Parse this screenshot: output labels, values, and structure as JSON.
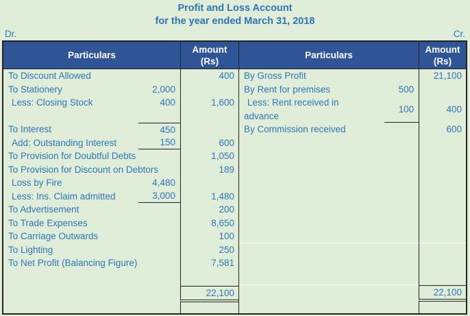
{
  "title": {
    "line1": "Profit and Loss Account",
    "line2": "for the year ended March 31, 2018"
  },
  "corner": {
    "left": "Dr.",
    "right": "Cr."
  },
  "header": {
    "particulars_left": "Particulars",
    "amount_left": "Amount\n(Rs)",
    "particulars_right": "Particulars",
    "amount_right": "Amount\n(Rs)"
  },
  "colors": {
    "page_bg": "#E0EDD8",
    "header_bg": "#2F5597",
    "header_text": "#FFFFFF",
    "title_blue": "#2E74B5",
    "text_blue": "#2E75B6",
    "border": "#222222"
  },
  "debit": {
    "rows": [
      {
        "label": "To Discount Allowed",
        "amount": "400"
      },
      {
        "label": "To Stationery",
        "inner": "2,000"
      },
      {
        "label": "Less: Closing Stock",
        "indent": true,
        "inner": "400",
        "amount": "1,600"
      },
      {
        "blank": true
      },
      {
        "label": "To Interest",
        "inner": "450",
        "inner_line": "top"
      },
      {
        "label": "Add: Outstanding Interest",
        "indent": true,
        "inner": "150",
        "inner_line": "bottom",
        "amount": "600"
      },
      {
        "label": "To Provision for Doubtful Debts",
        "amount": "1,050"
      },
      {
        "label": "To Provision for Discount on Debtors",
        "amount": "189"
      },
      {
        "label": "Loss by Fire",
        "indent": true,
        "inner": "4,480"
      },
      {
        "label": "Less: Ins. Claim admitted",
        "indent": true,
        "inner": "3,000",
        "inner_line": "bottom",
        "amount": "1,480"
      },
      {
        "label": "To Advertisement",
        "amount": "200"
      },
      {
        "label": "To Trade Expenses",
        "amount": "8,650"
      },
      {
        "label": "To Carriage Outwards",
        "amount": "100"
      },
      {
        "label": "To Lighting",
        "amount": "250"
      },
      {
        "label": "To Net Profit (Balancing Figure)",
        "amount": "7,581"
      }
    ],
    "total": "22,100"
  },
  "credit": {
    "rows": [
      {
        "label": "By Gross Profit",
        "amount": "21,100"
      },
      {
        "label": "By Rent for premises",
        "inner": "500"
      },
      {
        "label": "Less: Rent received in\nadvance",
        "indent": true,
        "inner": "100",
        "inner_line": "bottom",
        "amount": "400",
        "tall": true
      },
      {
        "label": "By Commission received",
        "amount": "600"
      }
    ],
    "total": "22,100"
  }
}
